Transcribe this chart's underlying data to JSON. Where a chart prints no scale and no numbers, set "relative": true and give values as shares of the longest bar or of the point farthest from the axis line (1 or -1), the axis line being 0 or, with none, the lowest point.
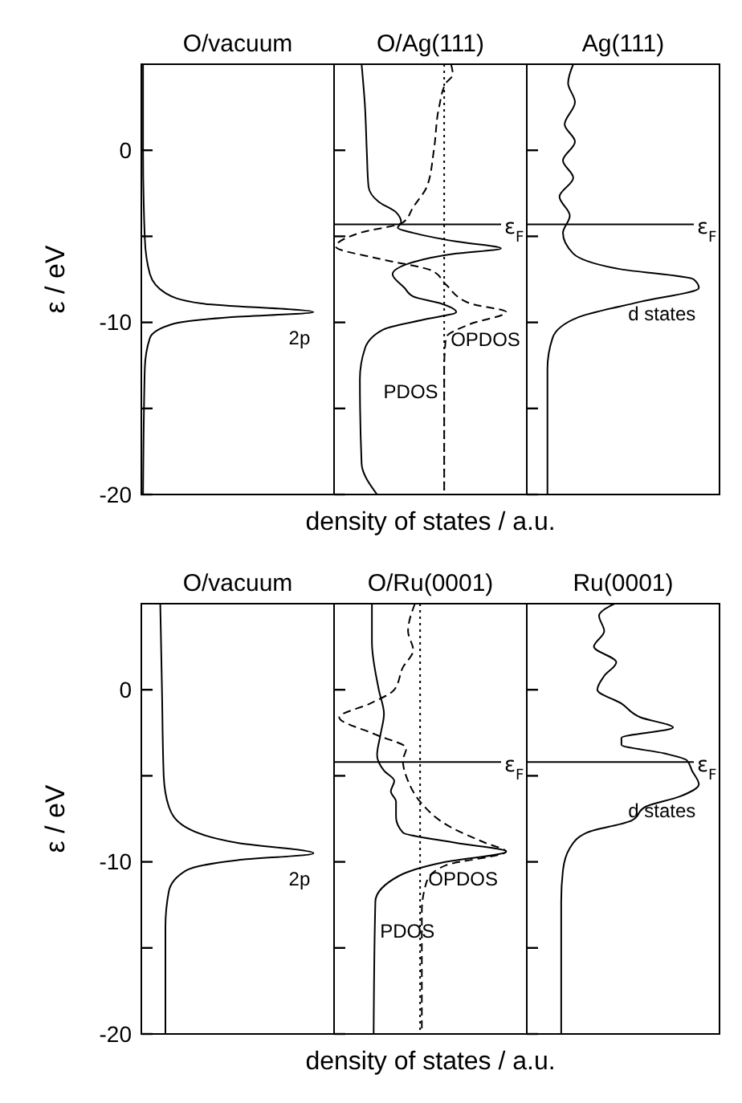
{
  "chart_data": [
    {
      "type": "line",
      "orientation": "horizontal",
      "relative": true,
      "title": "O/vacuum",
      "ylabel": "ε / eV",
      "ylim": [
        -20,
        5
      ],
      "yticks": [
        -20,
        -10,
        0
      ],
      "tick_labels": "y",
      "series": [
        {
          "color": "#000000",
          "line_style": "solid",
          "x": [
            5,
            0,
            -5.1,
            -7.2,
            -8.3,
            -8.9,
            -9.4,
            -9.7,
            -10.1,
            -10.9,
            -12.7,
            -20
          ],
          "values": [
            0.01,
            0.01,
            0.02,
            0.05,
            0.14,
            0.35,
            1,
            0.51,
            0.18,
            0.05,
            0.02,
            0.01
          ]
        }
      ],
      "annotations": [
        "2p"
      ]
    },
    {
      "type": "line",
      "orientation": "horizontal",
      "relative": true,
      "title": "O/Ag(111)",
      "xlabel": "density of states / a.u.",
      "ylim": [
        -20,
        5
      ],
      "yticks": [
        -20,
        -10,
        0
      ],
      "tick_labels": false,
      "series": [
        {
          "color": "#000000",
          "line_style": "solid",
          "x": [
            5,
            2.5,
            0,
            -2.1,
            -3,
            -3.6,
            -4.2,
            -4.5,
            -4.8,
            -5.3,
            -5.7,
            -6.0,
            -6.5,
            -7.2,
            -8.0,
            -8.5,
            -8.9,
            -9.4,
            -9.8,
            -10.4,
            -11.5,
            -13.3,
            -18.2,
            -20
          ],
          "values": [
            0.16,
            0.18,
            0.19,
            0.2,
            0.26,
            0.36,
            0.39,
            0.37,
            0.46,
            0.71,
            0.97,
            0.71,
            0.46,
            0.34,
            0.41,
            0.46,
            0.62,
            0.71,
            0.54,
            0.29,
            0.18,
            0.15,
            0.16,
            0.25
          ]
        },
        {
          "color": "#000000",
          "line_style": "dashed",
          "x": [
            5,
            4.4,
            3.9,
            2.5,
            0,
            -2.1,
            -3.3,
            -4.2,
            -4.8,
            -5.6,
            -6.3,
            -7.0,
            -7.8,
            -8.9,
            -9.4,
            -10.1,
            -10.9,
            -12.7,
            -20
          ],
          "values": [
            0.68,
            0.69,
            0.65,
            0.61,
            0.58,
            0.54,
            0.46,
            0.4,
            0.15,
            0.01,
            0.26,
            0.57,
            0.65,
            0.79,
            1,
            0.79,
            0.65,
            0.64,
            0.64
          ]
        }
      ],
      "ref_lines": [
        {
          "axis": "y",
          "value": -4.3,
          "label": "ε$_{F}$",
          "line_style": "solid"
        },
        {
          "axis": "x",
          "value": 0.64,
          "line_style": "dotted"
        }
      ],
      "annotations": [
        "PDOS",
        "OPDOS"
      ]
    },
    {
      "type": "line",
      "orientation": "horizontal",
      "relative": true,
      "title": "Ag(111)",
      "ylim": [
        -20,
        5
      ],
      "yticks": [
        -20,
        -10,
        0
      ],
      "tick_labels": false,
      "series": [
        {
          "color": "#000000",
          "line_style": "solid",
          "x": [
            5,
            3.9,
            2.8,
            1.5,
            0.5,
            -0.6,
            -1.6,
            -2.7,
            -3.8,
            -4.8,
            -6,
            -6.9,
            -7.5,
            -8.0,
            -8.8,
            -9.7,
            -10.9,
            -12.7,
            -20
          ],
          "values": [
            0.27,
            0.24,
            0.28,
            0.22,
            0.28,
            0.21,
            0.27,
            0.19,
            0.25,
            0.21,
            0.27,
            0.54,
            0.97,
            1,
            0.66,
            0.3,
            0.15,
            0.12,
            0.12
          ]
        }
      ],
      "ref_lines": [
        {
          "axis": "y",
          "value": -4.3,
          "label": "ε$_{F}$",
          "line_style": "solid"
        }
      ],
      "annotations": [
        "d states"
      ]
    },
    {
      "type": "line",
      "orientation": "horizontal",
      "relative": true,
      "title": "O/vacuum",
      "ylabel": "ε / eV",
      "ylim": [
        -20,
        5
      ],
      "yticks": [
        -20,
        -10,
        0
      ],
      "tick_labels": "y",
      "series": [
        {
          "color": "#000000",
          "line_style": "solid",
          "x": [
            5,
            0,
            -5,
            -6.8,
            -8,
            -8.9,
            -9.5,
            -9.9,
            -10.5,
            -11.7,
            -13.8,
            -20
          ],
          "values": [
            0.11,
            0.12,
            0.13,
            0.16,
            0.26,
            0.56,
            1,
            0.56,
            0.26,
            0.16,
            0.14,
            0.14
          ]
        }
      ],
      "annotations": [
        "2p"
      ]
    },
    {
      "type": "line",
      "orientation": "horizontal",
      "relative": true,
      "title": "O/Ru(0001)",
      "xlabel": "density of states / a.u.",
      "ylim": [
        -20,
        5
      ],
      "yticks": [
        -20,
        -10,
        0
      ],
      "tick_labels": false,
      "series": [
        {
          "color": "#000000",
          "line_style": "solid",
          "x": [
            5,
            2.8,
            0,
            -1.4,
            -2.6,
            -3.8,
            -4.7,
            -5.3,
            -5.9,
            -6.5,
            -7.4,
            -8.3,
            -8.9,
            -9.4,
            -10,
            -10.8,
            -12.3,
            -20
          ],
          "values": [
            0.22,
            0.22,
            0.26,
            0.29,
            0.27,
            0.25,
            0.29,
            0.35,
            0.33,
            0.36,
            0.36,
            0.4,
            0.71,
            1,
            0.65,
            0.38,
            0.24,
            0.23
          ]
        },
        {
          "color": "#000000",
          "line_style": "dashed",
          "x": [
            5,
            3.4,
            2.3,
            1.3,
            0,
            -0.8,
            -1.6,
            -2.6,
            -3.4,
            -4.1,
            -5.3,
            -6.5,
            -8,
            -8.9,
            -9.4,
            -10.2,
            -11.1,
            -12.9,
            -20
          ],
          "values": [
            0.47,
            0.43,
            0.46,
            0.4,
            0.35,
            0.21,
            0.03,
            0.24,
            0.42,
            0.4,
            0.43,
            0.5,
            0.68,
            0.88,
            1,
            0.65,
            0.54,
            0.51,
            0.51
          ]
        }
      ],
      "ref_lines": [
        {
          "axis": "y",
          "value": -4.2,
          "label": "ε$_{F}$",
          "line_style": "solid"
        },
        {
          "axis": "x",
          "value": 0.5,
          "line_style": "dotted"
        }
      ],
      "annotations": [
        "PDOS",
        "OPDOS"
      ]
    },
    {
      "type": "line",
      "orientation": "horizontal",
      "relative": true,
      "title": "Ru(0001)",
      "ylim": [
        -20,
        5
      ],
      "yticks": [
        -20,
        -10,
        0
      ],
      "tick_labels": false,
      "series": [
        {
          "color": "#000000",
          "line_style": "solid",
          "x": [
            5,
            4.3,
            3.4,
            2.5,
            1.6,
            0.8,
            0,
            -0.8,
            -1.6,
            -2.2,
            -2.8,
            -3.2,
            -3.7,
            -4.1,
            -4.7,
            -5.5,
            -6.2,
            -6.8,
            -7.6,
            -8.3,
            -9.2,
            -10.5,
            -12.3,
            -20
          ],
          "values": [
            0.51,
            0.42,
            0.45,
            0.39,
            0.52,
            0.45,
            0.41,
            0.55,
            0.66,
            0.85,
            0.55,
            0.55,
            0.8,
            0.93,
            0.96,
            1,
            0.89,
            0.69,
            0.61,
            0.35,
            0.25,
            0.21,
            0.2,
            0.2
          ]
        }
      ],
      "ref_lines": [
        {
          "axis": "y",
          "value": -4.2,
          "label": "ε$_{F}$",
          "line_style": "solid"
        }
      ],
      "annotations": [
        "d states"
      ]
    }
  ]
}
